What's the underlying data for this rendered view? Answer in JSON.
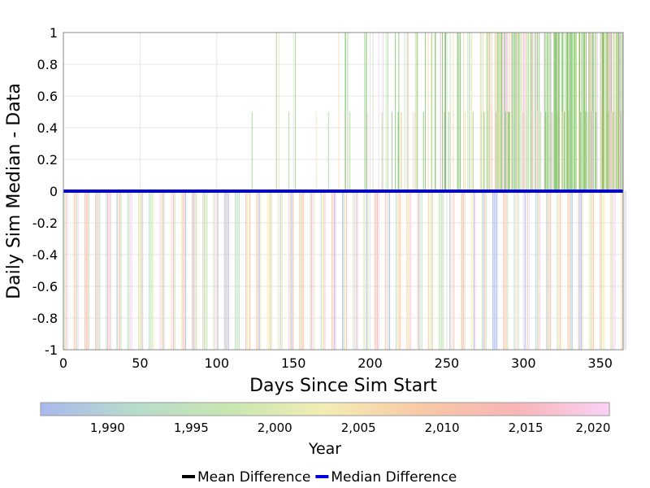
{
  "chart_data": {
    "type": "line",
    "xlabel": "Days Since Sim Start",
    "ylabel": "Daily Sim Median - Data",
    "xlim": [
      0,
      365
    ],
    "ylim": [
      -1,
      1
    ],
    "x_ticks": [
      0,
      50,
      100,
      150,
      200,
      250,
      300,
      350
    ],
    "y_ticks": [
      1,
      0.8,
      0.6,
      0.4,
      0.2,
      0,
      -0.2,
      -0.4,
      -0.6,
      -0.8,
      -1
    ],
    "grid": true,
    "legend_position": "bottom-center",
    "series": [
      {
        "name": "Mean Difference",
        "color": "#000000",
        "x": [
          0,
          365
        ],
        "y": [
          0,
          0
        ]
      },
      {
        "name": "Median Difference",
        "color": "#0000dd",
        "x": [
          0,
          365
        ],
        "y": [
          0,
          0
        ]
      }
    ],
    "background_traces": {
      "description_color_by": "year",
      "spike_pattern_period_days": 7,
      "negative_spike_value": -1,
      "positive_spike_values": [
        0.5,
        1
      ]
    },
    "colorbar": {
      "label": "Year",
      "range": [
        1986,
        2020
      ],
      "ticks": [
        1990,
        1995,
        2000,
        2005,
        2010,
        2015,
        2020
      ],
      "tick_labels": [
        "1,990",
        "1,995",
        "2,000",
        "2,005",
        "2,010",
        "2,015",
        "2,020"
      ],
      "colors": [
        "#aab8ee",
        "#b7dccb",
        "#c8e6b0",
        "#f3edb4",
        "#f8c9a6",
        "#f8b5b5",
        "#fad2f6"
      ]
    }
  }
}
